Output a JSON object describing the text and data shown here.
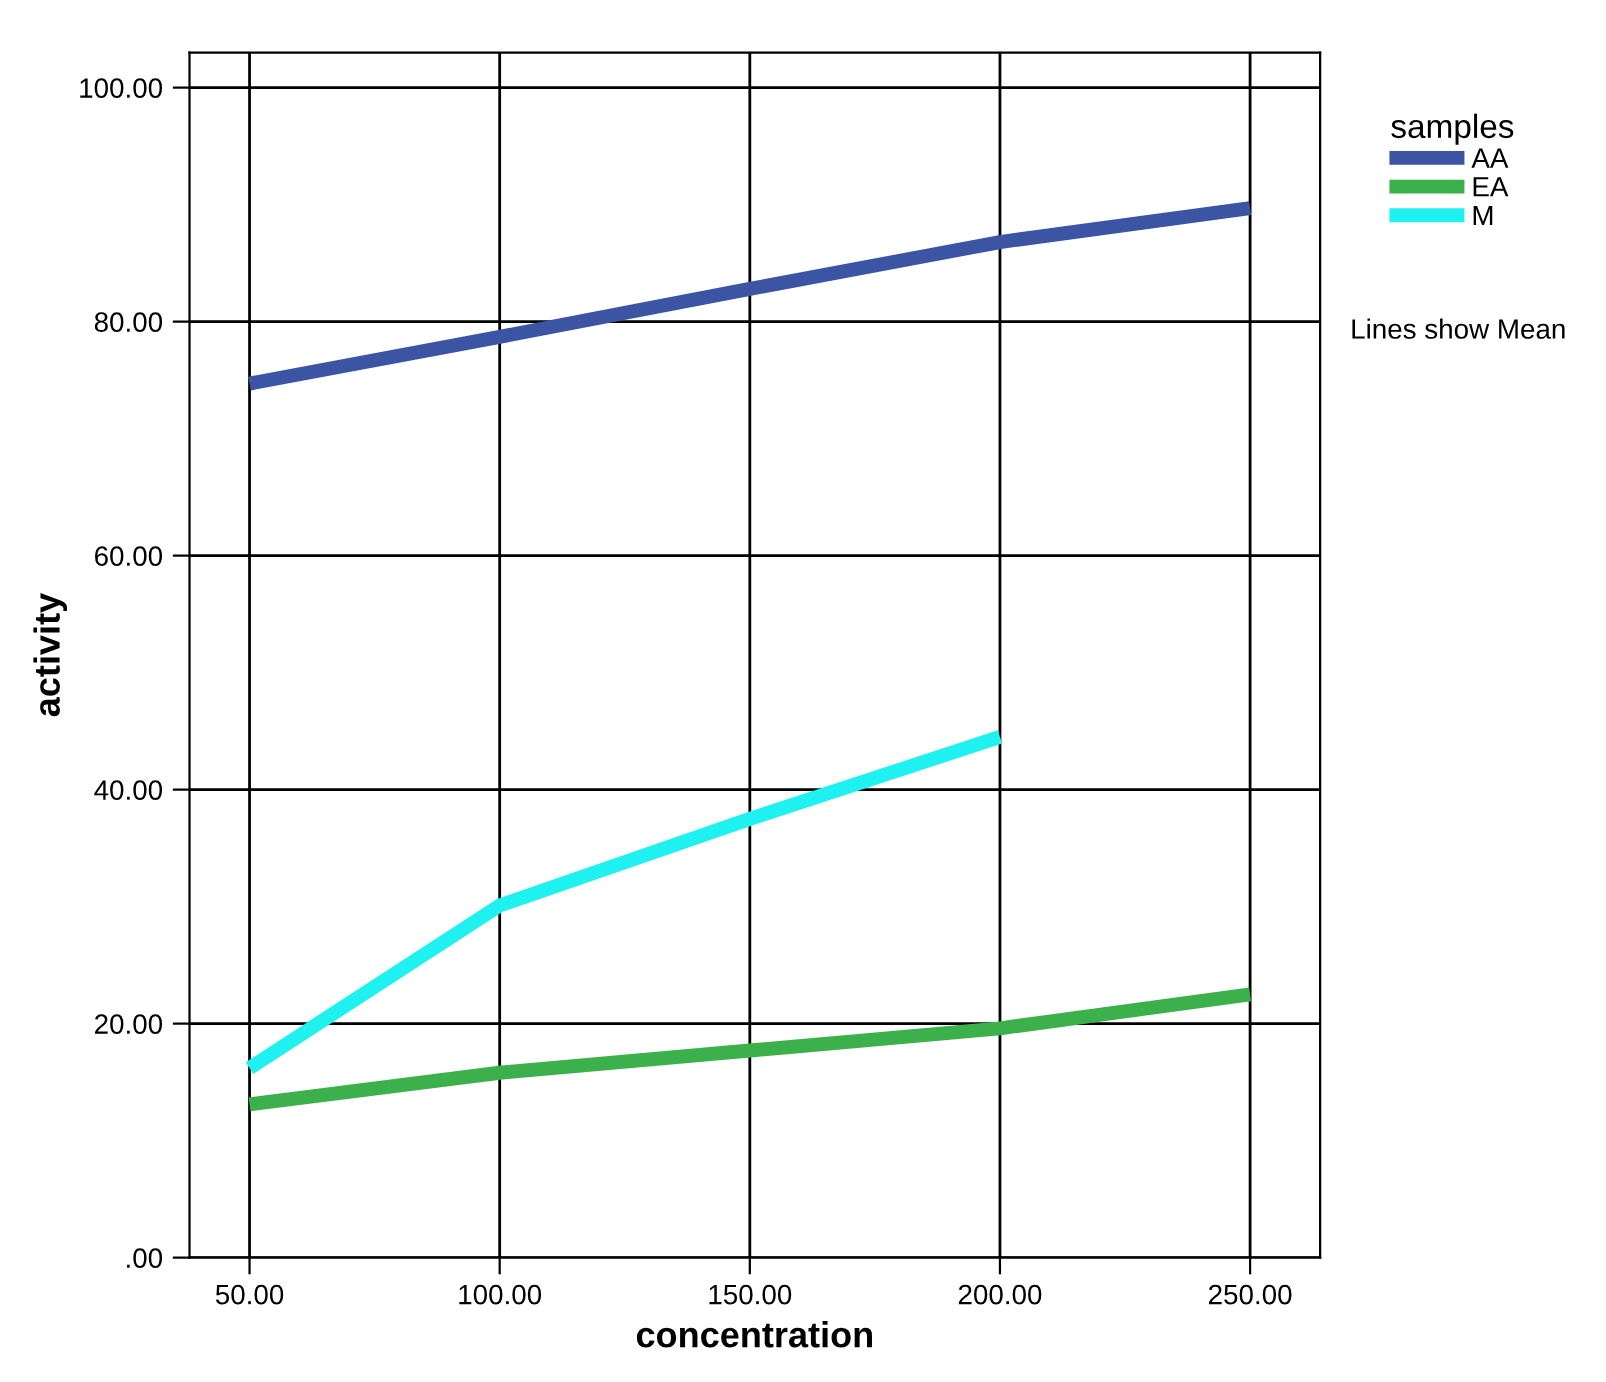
{
  "chart_data": {
    "type": "line",
    "xlabel": "concentration",
    "ylabel": "activity",
    "legend_title": "samples",
    "x": [
      50,
      100,
      150,
      200,
      250
    ],
    "series": [
      {
        "name": "AA",
        "color": "#3b54a4",
        "values": [
          74.7,
          78.7,
          82.8,
          86.8,
          89.7
        ]
      },
      {
        "name": "EA",
        "color": "#3cb04a",
        "values": [
          13.1,
          15.8,
          17.7,
          19.6,
          22.5
        ]
      },
      {
        "name": "M",
        "color": "#1ff0f0",
        "values": [
          16.2,
          30.1,
          37.5,
          44.5,
          null
        ]
      }
    ],
    "xlim": [
      38,
      264
    ],
    "ylim": [
      0,
      103
    ],
    "xticks": [
      {
        "value": 50,
        "label": "50.00"
      },
      {
        "value": 100,
        "label": "100.00"
      },
      {
        "value": 150,
        "label": "150.00"
      },
      {
        "value": 200,
        "label": "200.00"
      },
      {
        "value": 250,
        "label": "250.00"
      }
    ],
    "yticks": [
      {
        "value": 0,
        "label": ".00"
      },
      {
        "value": 20,
        "label": "20.00"
      },
      {
        "value": 40,
        "label": "40.00"
      },
      {
        "value": 60,
        "label": "60.00"
      },
      {
        "value": 80,
        "label": "80.00"
      },
      {
        "value": 100,
        "label": "100.00"
      }
    ],
    "grid": true,
    "legend": "right",
    "marker": "none",
    "line_style": "solid",
    "annotations": [
      "Lines show Mean"
    ]
  }
}
